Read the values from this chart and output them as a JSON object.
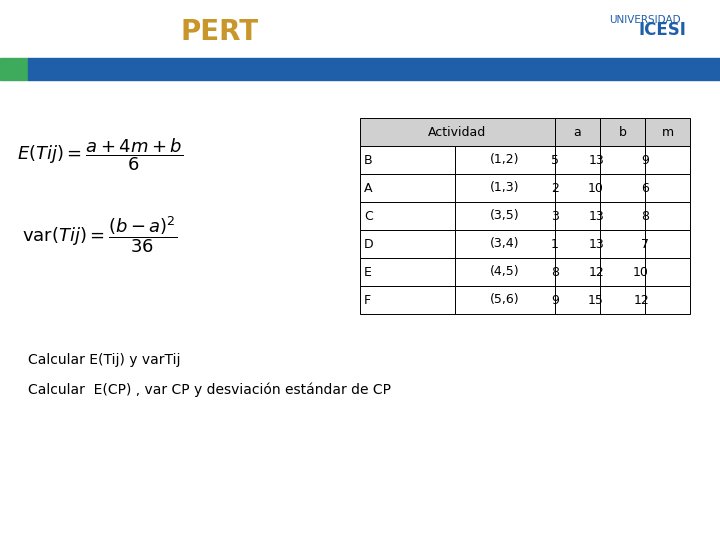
{
  "title": "PERT",
  "title_color": "#C8962A",
  "bg_color": "#FFFFFF",
  "header_bar_color": "#1F5EA8",
  "header_bar_green": "#3DAA5C",
  "table_col1": [
    "B",
    "A",
    "C",
    "D",
    "E",
    "F"
  ],
  "table_col2": [
    "(1,2)",
    "(1,3)",
    "(3,5)",
    "(3,4)",
    "(4,5)",
    "(5,6)"
  ],
  "table_a": [
    "5",
    "2",
    "3",
    "1",
    "8",
    "9"
  ],
  "table_b": [
    "13",
    "10",
    "13",
    "13",
    "12",
    "15"
  ],
  "table_m": [
    "9",
    "6",
    "8",
    "7",
    "10",
    "12"
  ],
  "text1": "Calcular E(Tij) y varTij",
  "text2": "Calcular  E(CP) , var CP y desviación estándar de CP",
  "table_header_bg": "#D0D0D0"
}
